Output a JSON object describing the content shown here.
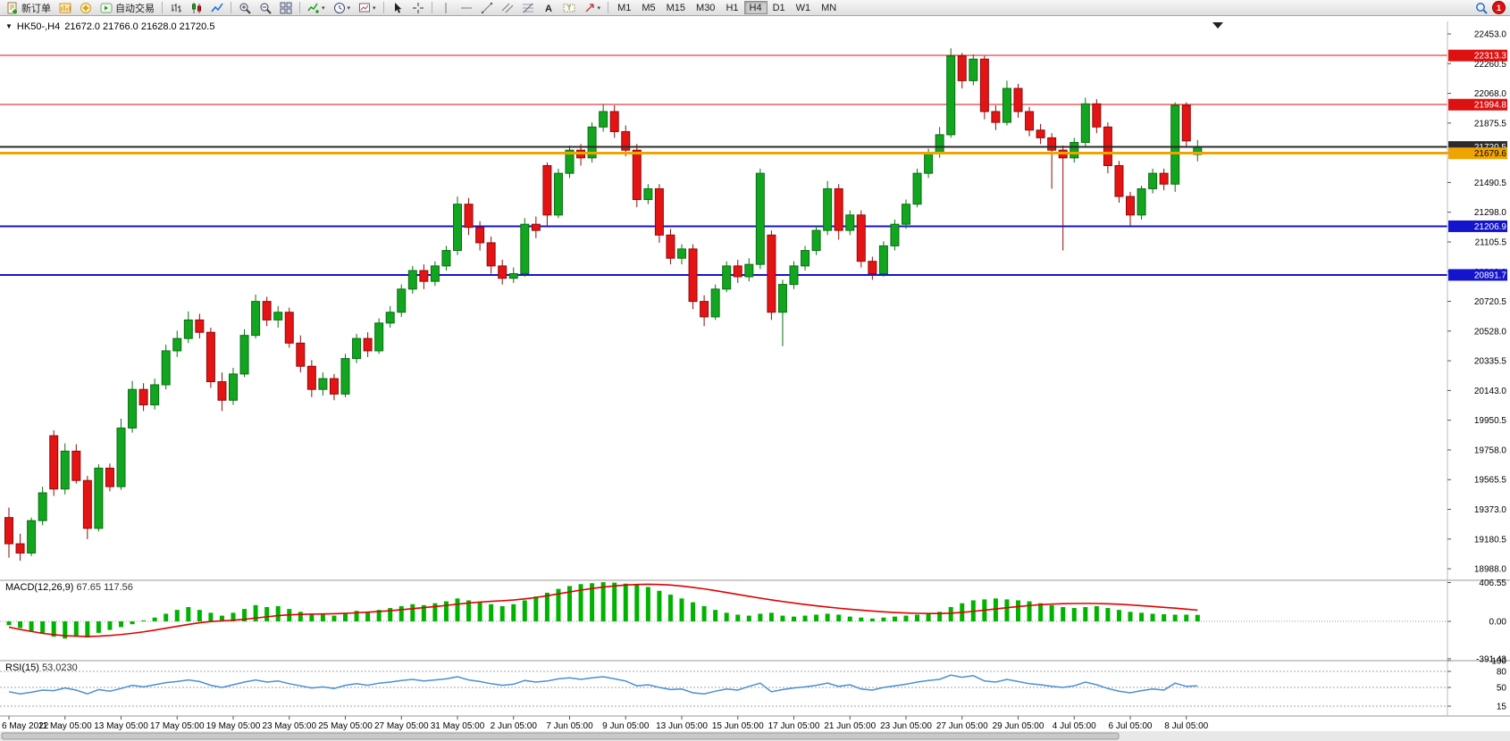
{
  "toolbar": {
    "new_order_label": "新订单",
    "autotrading_label": "自动交易",
    "timeframes": [
      "M1",
      "M5",
      "M15",
      "M30",
      "H1",
      "H4",
      "D1",
      "W1",
      "MN"
    ],
    "active_timeframe": "H4",
    "notification_count": "1"
  },
  "chart": {
    "symbol_title": "HK50-,H4",
    "ohlc_text": "21672.0 21766.0 21628.0 21720.5"
  },
  "chart_data": {
    "type": "candlestick",
    "symbol": "HK50",
    "period": "H4",
    "last_ohlc": {
      "open": 21672.0,
      "high": 21766.0,
      "low": 21628.0,
      "close": 21720.5
    },
    "colors": {
      "bull": "#12a51f",
      "bull_dark": "#0a6e12",
      "bear": "#e51414",
      "bear_dark": "#8f0a0a",
      "macd_hist": "#00b300",
      "macd_signal": "#e00000",
      "rsi_line": "#4a8fd4",
      "background": "#ffffff"
    },
    "price_axis": [
      "22453.0",
      "22260.5",
      "22068.0",
      "21875.5",
      "21683.0",
      "21490.5",
      "21298.0",
      "21105.5",
      "20913.0",
      "20720.5",
      "20528.0",
      "20335.5",
      "20143.0",
      "19950.5",
      "19758.0",
      "19565.5",
      "19373.0",
      "19180.5",
      "18988.0"
    ],
    "levels": [
      {
        "text": "22313.3",
        "value": 22313.3,
        "color": "#dd1111",
        "fg": "#ffffff",
        "width": 1,
        "front": false
      },
      {
        "text": "21994.8",
        "value": 21994.8,
        "color": "#dd1111",
        "fg": "#ffffff",
        "width": 1,
        "front": false
      },
      {
        "text": "21720.5",
        "value": 21720.5,
        "color": "#2b2b2b",
        "fg": "#ffffff",
        "width": 2,
        "front": true
      },
      {
        "text": "21679.6",
        "value": 21679.6,
        "color": "#f0a400",
        "fg": "#000000",
        "width": 3,
        "front": true
      },
      {
        "text": "21206.9",
        "value": 21206.9,
        "color": "#1414cc",
        "fg": "#ffffff",
        "width": 2,
        "front": false
      },
      {
        "text": "20891.7",
        "value": 20891.7,
        "color": "#1414cc",
        "fg": "#ffffff",
        "width": 2,
        "front": false
      }
    ],
    "label_every": 5,
    "time_labels": [
      "6 May 2022",
      "11 May 05:00",
      "13 May 05:00",
      "17 May 05:00",
      "19 May 05:00",
      "23 May 05:00",
      "25 May 05:00",
      "27 May 05:00",
      "31 May 05:00",
      "2 Jun 05:00",
      "7 Jun 05:00",
      "9 Jun 05:00",
      "13 Jun 05:00",
      "15 Jun 05:00",
      "17 Jun 05:00",
      "21 Jun 05:00",
      "23 Jun 05:00",
      "27 Jun 05:00",
      "29 Jun 05:00",
      "4 Jul 05:00",
      "6 Jul 05:00",
      "8 Jul 05:00"
    ],
    "candles": [
      [
        19320,
        19385,
        19060,
        19150
      ],
      [
        19150,
        19215,
        19040,
        19090
      ],
      [
        19090,
        19320,
        19070,
        19300
      ],
      [
        19300,
        19520,
        19270,
        19480
      ],
      [
        19850,
        19885,
        19460,
        19505
      ],
      [
        19505,
        19800,
        19470,
        19750
      ],
      [
        19750,
        19795,
        19540,
        19560
      ],
      [
        19560,
        19590,
        19180,
        19250
      ],
      [
        19250,
        19665,
        19230,
        19640
      ],
      [
        19640,
        19670,
        19490,
        19520
      ],
      [
        19520,
        19960,
        19500,
        19900
      ],
      [
        19900,
        20205,
        19870,
        20150
      ],
      [
        20150,
        20190,
        20010,
        20050
      ],
      [
        20050,
        20220,
        20020,
        20180
      ],
      [
        20180,
        20440,
        20150,
        20400
      ],
      [
        20400,
        20530,
        20360,
        20480
      ],
      [
        20480,
        20655,
        20450,
        20600
      ],
      [
        20600,
        20640,
        20480,
        20520
      ],
      [
        20520,
        20550,
        20160,
        20200
      ],
      [
        20200,
        20260,
        20010,
        20080
      ],
      [
        20080,
        20290,
        20050,
        20250
      ],
      [
        20250,
        20540,
        20230,
        20500
      ],
      [
        20500,
        20765,
        20480,
        20720
      ],
      [
        20720,
        20750,
        20560,
        20600
      ],
      [
        20600,
        20690,
        20550,
        20650
      ],
      [
        20650,
        20680,
        20420,
        20450
      ],
      [
        20450,
        20500,
        20260,
        20300
      ],
      [
        20300,
        20340,
        20100,
        20150
      ],
      [
        20150,
        20260,
        20110,
        20220
      ],
      [
        20220,
        20250,
        20080,
        20120
      ],
      [
        20120,
        20380,
        20100,
        20350
      ],
      [
        20350,
        20510,
        20320,
        20480
      ],
      [
        20480,
        20520,
        20360,
        20400
      ],
      [
        20400,
        20610,
        20380,
        20580
      ],
      [
        20580,
        20690,
        20550,
        20650
      ],
      [
        20650,
        20830,
        20620,
        20800
      ],
      [
        20800,
        20950,
        20770,
        20920
      ],
      [
        20920,
        20960,
        20800,
        20850
      ],
      [
        20850,
        20980,
        20820,
        20950
      ],
      [
        20950,
        21080,
        20920,
        21050
      ],
      [
        21050,
        21400,
        21020,
        21350
      ],
      [
        21350,
        21390,
        21150,
        21200
      ],
      [
        21200,
        21240,
        21050,
        21100
      ],
      [
        21100,
        21140,
        20900,
        20950
      ],
      [
        20950,
        20990,
        20830,
        20870
      ],
      [
        20870,
        20940,
        20840,
        20900
      ],
      [
        20900,
        21260,
        20880,
        21220
      ],
      [
        21220,
        21270,
        21130,
        21180
      ],
      [
        21600,
        21620,
        21200,
        21280
      ],
      [
        21280,
        21580,
        21260,
        21550
      ],
      [
        21550,
        21730,
        21520,
        21700
      ],
      [
        21700,
        21740,
        21600,
        21650
      ],
      [
        21650,
        21880,
        21620,
        21850
      ],
      [
        21850,
        22000,
        21820,
        21950
      ],
      [
        21950,
        21990,
        21780,
        21820
      ],
      [
        21820,
        21860,
        21660,
        21700
      ],
      [
        21700,
        21740,
        21330,
        21380
      ],
      [
        21380,
        21480,
        21350,
        21450
      ],
      [
        21450,
        21480,
        21100,
        21150
      ],
      [
        21150,
        21190,
        20960,
        21000
      ],
      [
        21000,
        21090,
        20960,
        21060
      ],
      [
        21060,
        21090,
        20670,
        20720
      ],
      [
        20720,
        20760,
        20560,
        20620
      ],
      [
        20620,
        20830,
        20600,
        20800
      ],
      [
        20800,
        20980,
        20780,
        20950
      ],
      [
        20950,
        20990,
        20840,
        20880
      ],
      [
        20880,
        21000,
        20850,
        20960
      ],
      [
        20960,
        21580,
        20930,
        21550
      ],
      [
        21150,
        21180,
        20600,
        20650
      ],
      [
        20650,
        20860,
        20430,
        20830
      ],
      [
        20830,
        20980,
        20800,
        20950
      ],
      [
        20950,
        21080,
        20920,
        21050
      ],
      [
        21050,
        21210,
        21020,
        21180
      ],
      [
        21180,
        21500,
        21150,
        21450
      ],
      [
        21450,
        21480,
        21120,
        21180
      ],
      [
        21180,
        21310,
        21150,
        21280
      ],
      [
        21280,
        21310,
        20940,
        20980
      ],
      [
        20980,
        21010,
        20860,
        20900
      ],
      [
        20900,
        21110,
        20880,
        21080
      ],
      [
        21080,
        21250,
        21050,
        21220
      ],
      [
        21220,
        21380,
        21190,
        21350
      ],
      [
        21350,
        21580,
        21330,
        21550
      ],
      [
        21550,
        21710,
        21520,
        21680
      ],
      [
        21680,
        21850,
        21650,
        21800
      ],
      [
        21800,
        22360,
        21780,
        22310
      ],
      [
        22310,
        22330,
        22100,
        22150
      ],
      [
        22150,
        22320,
        22120,
        22290
      ],
      [
        22290,
        22310,
        21900,
        21950
      ],
      [
        21950,
        21990,
        21830,
        21880
      ],
      [
        21880,
        22150,
        21860,
        22100
      ],
      [
        22100,
        22130,
        21910,
        21950
      ],
      [
        21950,
        21980,
        21790,
        21830
      ],
      [
        21830,
        21870,
        21740,
        21780
      ],
      [
        21780,
        21810,
        21450,
        21700
      ],
      [
        21700,
        21730,
        21050,
        21650
      ],
      [
        21650,
        21780,
        21620,
        21750
      ],
      [
        21750,
        22040,
        21720,
        22000
      ],
      [
        22000,
        22030,
        21810,
        21850
      ],
      [
        21850,
        21880,
        21550,
        21600
      ],
      [
        21600,
        21630,
        21360,
        21400
      ],
      [
        21400,
        21430,
        21210,
        21280
      ],
      [
        21280,
        21470,
        21250,
        21450
      ],
      [
        21450,
        21580,
        21420,
        21550
      ],
      [
        21550,
        21580,
        21440,
        21480
      ],
      [
        21480,
        22010,
        21430,
        21990
      ],
      [
        21990,
        22010,
        21720,
        21760
      ],
      [
        21672,
        21766,
        21628,
        21720.5
      ]
    ],
    "indicators": {
      "macd": {
        "label": "MACD(12,26,9)",
        "values_text": "67.65 117.56",
        "axis": [
          "406.55",
          "0.00",
          "-391.43"
        ],
        "histogram": [
          -40,
          -70,
          -100,
          -130,
          -160,
          -180,
          -150,
          -170,
          -120,
          -90,
          -60,
          -30,
          10,
          40,
          80,
          120,
          150,
          120,
          90,
          60,
          90,
          130,
          170,
          150,
          160,
          130,
          100,
          80,
          70,
          60,
          90,
          110,
          100,
          120,
          140,
          160,
          180,
          170,
          190,
          210,
          240,
          220,
          200,
          180,
          160,
          180,
          220,
          260,
          300,
          340,
          370,
          390,
          400,
          410,
          405,
          395,
          380,
          360,
          320,
          280,
          240,
          200,
          160,
          120,
          90,
          70,
          60,
          80,
          90,
          60,
          50,
          60,
          70,
          80,
          70,
          50,
          40,
          30,
          40,
          50,
          60,
          70,
          80,
          100,
          150,
          190,
          220,
          230,
          240,
          230,
          220,
          210,
          190,
          170,
          150,
          140,
          150,
          160,
          140,
          120,
          100,
          90,
          80,
          75,
          70,
          70,
          68
        ],
        "signal": [
          -60,
          -85,
          -105,
          -125,
          -140,
          -150,
          -155,
          -158,
          -155,
          -148,
          -138,
          -125,
          -110,
          -92,
          -72,
          -52,
          -32,
          -15,
          -2,
          5,
          12,
          22,
          35,
          48,
          60,
          68,
          73,
          76,
          78,
          80,
          84,
          90,
          96,
          103,
          112,
          122,
          133,
          144,
          155,
          167,
          180,
          192,
          202,
          210,
          216,
          224,
          235,
          250,
          268,
          288,
          308,
          327,
          344,
          359,
          371,
          380,
          386,
          388,
          386,
          380,
          370,
          356,
          340,
          322,
          302,
          282,
          262,
          243,
          225,
          208,
          192,
          177,
          163,
          150,
          138,
          127,
          117,
          108,
          100,
          93,
          88,
          84,
          82,
          82,
          86,
          94,
          105,
          117,
          130,
          143,
          155,
          166,
          175,
          181,
          185,
          187,
          188,
          187,
          184,
          179,
          172,
          164,
          156,
          147,
          138,
          128,
          118
        ]
      },
      "rsi": {
        "label": "RSI(15)",
        "value_text": "53.0230",
        "axis": [
          "100",
          "80",
          "50",
          "15"
        ],
        "levels": [
          80,
          50,
          15
        ],
        "series": [
          42,
          38,
          41,
          45,
          44,
          49,
          45,
          38,
          46,
          43,
          48,
          54,
          51,
          55,
          59,
          61,
          64,
          61,
          54,
          50,
          55,
          60,
          64,
          60,
          62,
          57,
          53,
          49,
          51,
          48,
          54,
          57,
          54,
          58,
          60,
          63,
          65,
          62,
          64,
          66,
          70,
          64,
          61,
          57,
          54,
          56,
          63,
          60,
          62,
          66,
          68,
          65,
          68,
          70,
          66,
          62,
          53,
          55,
          50,
          46,
          47,
          40,
          38,
          43,
          47,
          45,
          52,
          58,
          42,
          46,
          49,
          51,
          54,
          58,
          52,
          55,
          47,
          45,
          50,
          53,
          56,
          60,
          63,
          65,
          73,
          69,
          72,
          62,
          60,
          65,
          61,
          57,
          55,
          52,
          50,
          53,
          60,
          55,
          48,
          43,
          40,
          44,
          47,
          45,
          58,
          52,
          53
        ]
      }
    }
  }
}
